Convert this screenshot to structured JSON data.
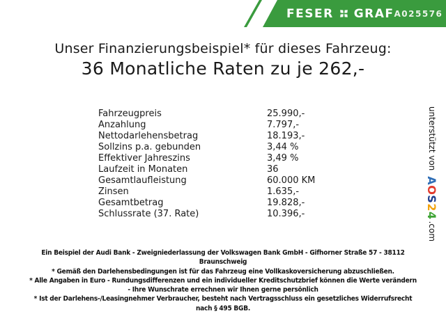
{
  "header": {
    "brand_part1": "FESER",
    "brand_part2": "GRAF",
    "brand_icon": "clover-pinwheel-icon",
    "vehicle_id": "A025576",
    "brand_green": "#3a9b3e"
  },
  "heading": {
    "line1": "Unser Finanzierungsbeispiel* für dieses Fahrzeug:",
    "line2": "36 Monatliche Raten zu je 262,-"
  },
  "financing": {
    "rows": [
      {
        "label": "Fahrzeugpreis",
        "value": "25.990,-"
      },
      {
        "label": "Anzahlung",
        "value": "7.797,-"
      },
      {
        "label": "Nettodarlehensbetrag",
        "value": "18.193,-"
      },
      {
        "label": "Sollzins p.a. gebunden",
        "value": "3,44 %"
      },
      {
        "label": "Effektiver Jahreszins",
        "value": "3,49 %"
      },
      {
        "label": "Laufzeit in Monaten",
        "value": "36"
      },
      {
        "label": "Gesamtlaufleistung",
        "value": "60.000 KM"
      },
      {
        "label": "Zinsen",
        "value": "1.635,-"
      },
      {
        "label": "Gesamtbetrag",
        "value": "19.828,-"
      },
      {
        "label": "Schlussrate (37. Rate)",
        "value": "10.396,-"
      }
    ]
  },
  "footnotes": {
    "lines": [
      "Ein Beispiel der Audi Bank - Zweigniederlassung der Volkswagen Bank GmbH - Gifhorner Straße 57 - 38112",
      "Braunschweig",
      "* Gemäß den Darlehensbedingungen ist für das Fahrzeug eine Vollkaskoversicherung abzuschließen.",
      "* Alle Angaben in Euro - Rundungsdifferenzen und ein individueller Kreditschutzbrief können die Werte verändern",
      "- Ihre Wunschrate errechnen wir Ihnen gerne persönlich",
      "* Ist der Darlehens-/Leasingnehmer Verbraucher, besteht nach Vertragsschluss ein gesetzliches Widerrufsrecht",
      "nach § 495 BGB."
    ]
  },
  "support": {
    "label": "unterstützt von",
    "logo_letters": [
      {
        "char": "A",
        "color": "#2f6eb6"
      },
      {
        "char": "O",
        "color": "#e23b2e"
      },
      {
        "char": "S",
        "color": "#1d3e8f"
      },
      {
        "char": "2",
        "color": "#f2a30f"
      },
      {
        "char": "4",
        "color": "#3fa435"
      }
    ],
    "suffix": ".com"
  }
}
